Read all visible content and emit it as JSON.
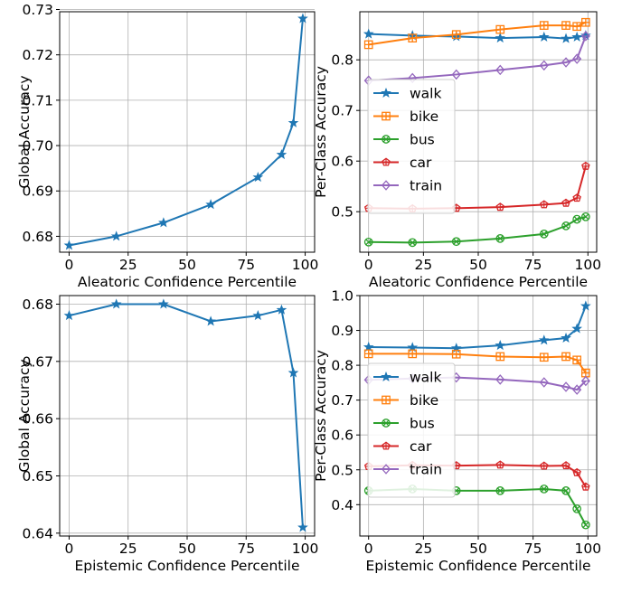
{
  "chart_data": [
    {
      "type": "line",
      "xlabel": "Aleatoric Confidence Percentile",
      "ylabel": "Global Accuracy",
      "xlim": [
        -4,
        104
      ],
      "ylim": [
        0.6765,
        0.7295
      ],
      "xticks": [
        0,
        25,
        50,
        75,
        100
      ],
      "yticks": [
        0.68,
        0.69,
        0.7,
        0.71,
        0.72,
        0.73
      ],
      "yfmt": 2,
      "grid": true,
      "x": [
        0,
        20,
        40,
        60,
        80,
        90,
        95,
        99
      ],
      "series": [
        {
          "color": "#1f77b4",
          "marker": "star",
          "values": [
            0.678,
            0.68,
            0.683,
            0.687,
            0.693,
            0.698,
            0.705,
            0.728
          ]
        }
      ]
    },
    {
      "type": "line",
      "xlabel": "Aleatoric Confidence Percentile",
      "ylabel": "Per-Class Accuracy",
      "xlim": [
        -4,
        104
      ],
      "ylim": [
        0.42,
        0.895
      ],
      "xticks": [
        0,
        25,
        50,
        75,
        100
      ],
      "yticks": [
        0.5,
        0.6,
        0.7,
        0.8
      ],
      "yfmt": 1,
      "grid": true,
      "legend": "center-left",
      "x": [
        0,
        20,
        40,
        60,
        80,
        90,
        95,
        99
      ],
      "series": [
        {
          "name": "walk",
          "color": "#1f77b4",
          "marker": "star",
          "values": [
            0.851,
            0.848,
            0.846,
            0.843,
            0.845,
            0.842,
            0.845,
            0.848
          ]
        },
        {
          "name": "bike",
          "color": "#ff7f0e",
          "marker": "plus",
          "values": [
            0.83,
            0.843,
            0.85,
            0.86,
            0.868,
            0.868,
            0.866,
            0.874
          ]
        },
        {
          "name": "bus",
          "color": "#2ca02c",
          "marker": "x",
          "values": [
            0.44,
            0.439,
            0.441,
            0.447,
            0.456,
            0.472,
            0.485,
            0.49
          ]
        },
        {
          "name": "car",
          "color": "#d62728",
          "marker": "pent",
          "values": [
            0.507,
            0.506,
            0.507,
            0.509,
            0.514,
            0.517,
            0.527,
            0.59
          ]
        },
        {
          "name": "train",
          "color": "#9467bd",
          "marker": "diamond",
          "values": [
            0.759,
            0.764,
            0.771,
            0.78,
            0.789,
            0.795,
            0.802,
            0.847
          ]
        }
      ]
    },
    {
      "type": "line",
      "xlabel": "Epistemic Confidence Percentile",
      "ylabel": "Global Accuracy",
      "xlim": [
        -4,
        104
      ],
      "ylim": [
        0.6395,
        0.6815
      ],
      "xticks": [
        0,
        25,
        50,
        75,
        100
      ],
      "yticks": [
        0.64,
        0.65,
        0.66,
        0.67,
        0.68
      ],
      "yfmt": 2,
      "grid": true,
      "x": [
        0,
        20,
        40,
        60,
        80,
        90,
        95,
        99
      ],
      "series": [
        {
          "color": "#1f77b4",
          "marker": "star",
          "values": [
            0.678,
            0.68,
            0.68,
            0.677,
            0.678,
            0.679,
            0.668,
            0.641
          ]
        }
      ]
    },
    {
      "type": "line",
      "xlabel": "Epistemic Confidence Percentile",
      "ylabel": "Per-Class Accuracy",
      "xlim": [
        -4,
        104
      ],
      "ylim": [
        0.31,
        1.0
      ],
      "xticks": [
        0,
        25,
        50,
        75,
        100
      ],
      "yticks": [
        0.4,
        0.5,
        0.6,
        0.7,
        0.8,
        0.9,
        1.0
      ],
      "yfmt": 1,
      "grid": true,
      "legend": "center-left",
      "x": [
        0,
        20,
        40,
        60,
        80,
        90,
        95,
        99
      ],
      "series": [
        {
          "name": "walk",
          "color": "#1f77b4",
          "marker": "star",
          "values": [
            0.852,
            0.851,
            0.849,
            0.857,
            0.872,
            0.878,
            0.905,
            0.97
          ]
        },
        {
          "name": "bike",
          "color": "#ff7f0e",
          "marker": "plus",
          "values": [
            0.833,
            0.833,
            0.832,
            0.825,
            0.823,
            0.825,
            0.815,
            0.778
          ]
        },
        {
          "name": "bus",
          "color": "#2ca02c",
          "marker": "x",
          "values": [
            0.44,
            0.445,
            0.44,
            0.44,
            0.445,
            0.44,
            0.388,
            0.342
          ]
        },
        {
          "name": "car",
          "color": "#d62728",
          "marker": "pent",
          "values": [
            0.51,
            0.513,
            0.512,
            0.514,
            0.511,
            0.512,
            0.492,
            0.451
          ]
        },
        {
          "name": "train",
          "color": "#9467bd",
          "marker": "diamond",
          "values": [
            0.758,
            0.762,
            0.765,
            0.759,
            0.751,
            0.738,
            0.73,
            0.755
          ]
        }
      ]
    }
  ]
}
